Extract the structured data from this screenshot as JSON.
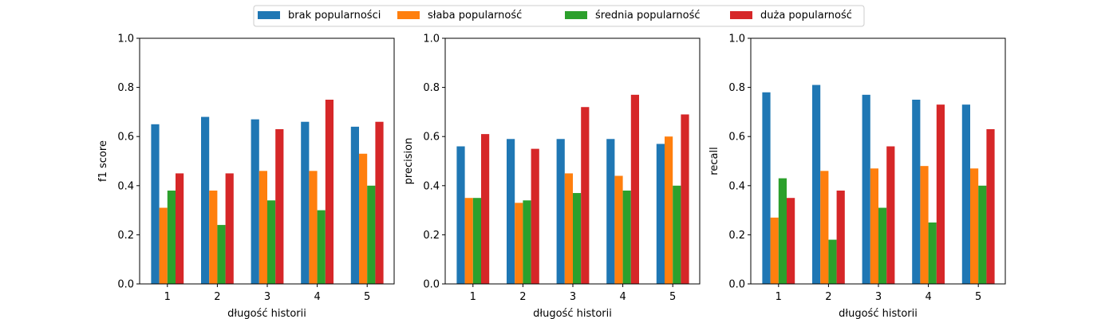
{
  "legend": {
    "entries": [
      {
        "label": "brak popularności",
        "color": "#1f77b4"
      },
      {
        "label": "słaba popularność",
        "color": "#ff7f0e"
      },
      {
        "label": "średnia popularność",
        "color": "#2ca02c"
      },
      {
        "label": "duża popularność",
        "color": "#d62728"
      }
    ],
    "placement": "top-center"
  },
  "chart_data": [
    {
      "type": "bar",
      "xlabel": "długość historii",
      "ylabel": "f1 score",
      "ylim": [
        0,
        1.0
      ],
      "yticks": [
        "0.0",
        "0.2",
        "0.4",
        "0.6",
        "0.8",
        "1.0"
      ],
      "categories": [
        "1",
        "2",
        "3",
        "4",
        "5"
      ],
      "grid": false,
      "series": [
        {
          "name": "brak popularności",
          "values": [
            0.65,
            0.68,
            0.67,
            0.66,
            0.64
          ]
        },
        {
          "name": "słaba popularność",
          "values": [
            0.31,
            0.38,
            0.46,
            0.46,
            0.53
          ]
        },
        {
          "name": "średnia popularność",
          "values": [
            0.38,
            0.24,
            0.34,
            0.3,
            0.4
          ]
        },
        {
          "name": "duża popularność",
          "values": [
            0.45,
            0.45,
            0.63,
            0.75,
            0.66
          ]
        }
      ]
    },
    {
      "type": "bar",
      "xlabel": "długość historii",
      "ylabel": "precision",
      "ylim": [
        0,
        1.0
      ],
      "yticks": [
        "0.0",
        "0.2",
        "0.4",
        "0.6",
        "0.8",
        "1.0"
      ],
      "categories": [
        "1",
        "2",
        "3",
        "4",
        "5"
      ],
      "grid": false,
      "series": [
        {
          "name": "brak popularności",
          "values": [
            0.56,
            0.59,
            0.59,
            0.59,
            0.57
          ]
        },
        {
          "name": "słaba popularność",
          "values": [
            0.35,
            0.33,
            0.45,
            0.44,
            0.6
          ]
        },
        {
          "name": "średnia popularność",
          "values": [
            0.35,
            0.34,
            0.37,
            0.38,
            0.4
          ]
        },
        {
          "name": "duża popularność",
          "values": [
            0.61,
            0.55,
            0.72,
            0.77,
            0.69
          ]
        }
      ]
    },
    {
      "type": "bar",
      "xlabel": "długość historii",
      "ylabel": "recall",
      "ylim": [
        0,
        1.0
      ],
      "yticks": [
        "0.0",
        "0.2",
        "0.4",
        "0.6",
        "0.8",
        "1.0"
      ],
      "categories": [
        "1",
        "2",
        "3",
        "4",
        "5"
      ],
      "grid": false,
      "series": [
        {
          "name": "brak popularności",
          "values": [
            0.78,
            0.81,
            0.77,
            0.75,
            0.73
          ]
        },
        {
          "name": "słaba popularność",
          "values": [
            0.27,
            0.46,
            0.47,
            0.48,
            0.47
          ]
        },
        {
          "name": "średnia popularność",
          "values": [
            0.43,
            0.18,
            0.31,
            0.25,
            0.4
          ]
        },
        {
          "name": "duża popularność",
          "values": [
            0.35,
            0.38,
            0.56,
            0.73,
            0.63
          ]
        }
      ]
    }
  ]
}
